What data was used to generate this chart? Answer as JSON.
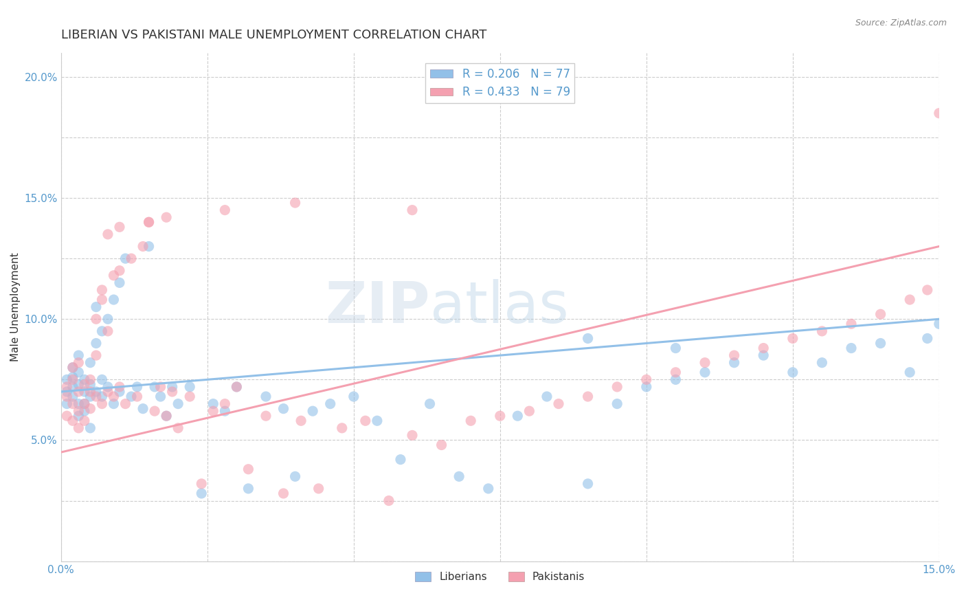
{
  "title": "LIBERIAN VS PAKISTANI MALE UNEMPLOYMENT CORRELATION CHART",
  "source_text": "Source: ZipAtlas.com",
  "ylabel": "Male Unemployment",
  "xlim": [
    0.0,
    0.15
  ],
  "ylim": [
    0.0,
    0.21
  ],
  "xticks": [
    0.0,
    0.025,
    0.05,
    0.075,
    0.1,
    0.125,
    0.15
  ],
  "xticklabels": [
    "0.0%",
    "",
    "",
    "",
    "",
    "",
    "15.0%"
  ],
  "yticks": [
    0.0,
    0.025,
    0.05,
    0.075,
    0.1,
    0.125,
    0.15,
    0.175,
    0.2
  ],
  "yticklabels": [
    "",
    "",
    "5.0%",
    "",
    "10.0%",
    "",
    "15.0%",
    "",
    "20.0%"
  ],
  "liberian_color": "#92c0e8",
  "pakistani_color": "#f4a0b0",
  "liberian_R": 0.206,
  "liberian_N": 77,
  "pakistani_R": 0.433,
  "pakistani_N": 79,
  "watermark_zip": "ZIP",
  "watermark_atlas": "atlas",
  "background_color": "#ffffff",
  "grid_color": "#cccccc",
  "axis_label_color": "#5599cc",
  "title_color": "#333333",
  "liberian_scatter_x": [
    0.001,
    0.001,
    0.001,
    0.002,
    0.002,
    0.002,
    0.002,
    0.003,
    0.003,
    0.003,
    0.003,
    0.003,
    0.004,
    0.004,
    0.004,
    0.004,
    0.005,
    0.005,
    0.005,
    0.005,
    0.006,
    0.006,
    0.006,
    0.007,
    0.007,
    0.007,
    0.008,
    0.008,
    0.009,
    0.009,
    0.01,
    0.01,
    0.011,
    0.012,
    0.013,
    0.014,
    0.015,
    0.016,
    0.017,
    0.018,
    0.019,
    0.02,
    0.022,
    0.024,
    0.026,
    0.028,
    0.03,
    0.032,
    0.035,
    0.038,
    0.04,
    0.043,
    0.046,
    0.05,
    0.054,
    0.058,
    0.063,
    0.068,
    0.073,
    0.078,
    0.083,
    0.09,
    0.095,
    0.1,
    0.105,
    0.11,
    0.115,
    0.12,
    0.125,
    0.13,
    0.135,
    0.14,
    0.145,
    0.148,
    0.15,
    0.105,
    0.09
  ],
  "liberian_scatter_y": [
    0.07,
    0.075,
    0.065,
    0.072,
    0.068,
    0.08,
    0.076,
    0.065,
    0.073,
    0.06,
    0.085,
    0.078,
    0.07,
    0.065,
    0.075,
    0.062,
    0.068,
    0.073,
    0.055,
    0.082,
    0.105,
    0.07,
    0.09,
    0.095,
    0.068,
    0.075,
    0.1,
    0.072,
    0.108,
    0.065,
    0.115,
    0.07,
    0.125,
    0.068,
    0.072,
    0.063,
    0.13,
    0.072,
    0.068,
    0.06,
    0.072,
    0.065,
    0.072,
    0.028,
    0.065,
    0.062,
    0.072,
    0.03,
    0.068,
    0.063,
    0.035,
    0.062,
    0.065,
    0.068,
    0.058,
    0.042,
    0.065,
    0.035,
    0.03,
    0.06,
    0.068,
    0.032,
    0.065,
    0.072,
    0.075,
    0.078,
    0.082,
    0.085,
    0.078,
    0.082,
    0.088,
    0.09,
    0.078,
    0.092,
    0.098,
    0.088,
    0.092
  ],
  "pakistani_scatter_x": [
    0.001,
    0.001,
    0.001,
    0.002,
    0.002,
    0.002,
    0.002,
    0.003,
    0.003,
    0.003,
    0.003,
    0.004,
    0.004,
    0.004,
    0.005,
    0.005,
    0.005,
    0.006,
    0.006,
    0.006,
    0.007,
    0.007,
    0.007,
    0.008,
    0.008,
    0.009,
    0.009,
    0.01,
    0.01,
    0.011,
    0.012,
    0.013,
    0.014,
    0.015,
    0.016,
    0.017,
    0.018,
    0.019,
    0.02,
    0.022,
    0.024,
    0.026,
    0.028,
    0.03,
    0.032,
    0.035,
    0.038,
    0.041,
    0.044,
    0.048,
    0.052,
    0.056,
    0.06,
    0.065,
    0.07,
    0.075,
    0.08,
    0.085,
    0.09,
    0.095,
    0.1,
    0.105,
    0.11,
    0.115,
    0.12,
    0.125,
    0.13,
    0.135,
    0.14,
    0.145,
    0.148,
    0.15,
    0.06,
    0.04,
    0.028,
    0.018,
    0.015,
    0.01,
    0.008
  ],
  "pakistani_scatter_y": [
    0.068,
    0.072,
    0.06,
    0.065,
    0.075,
    0.058,
    0.08,
    0.062,
    0.07,
    0.055,
    0.082,
    0.065,
    0.073,
    0.058,
    0.07,
    0.063,
    0.075,
    0.1,
    0.068,
    0.085,
    0.108,
    0.065,
    0.112,
    0.07,
    0.095,
    0.068,
    0.118,
    0.072,
    0.12,
    0.065,
    0.125,
    0.068,
    0.13,
    0.14,
    0.062,
    0.072,
    0.06,
    0.07,
    0.055,
    0.068,
    0.032,
    0.062,
    0.065,
    0.072,
    0.038,
    0.06,
    0.028,
    0.058,
    0.03,
    0.055,
    0.058,
    0.025,
    0.052,
    0.048,
    0.058,
    0.06,
    0.062,
    0.065,
    0.068,
    0.072,
    0.075,
    0.078,
    0.082,
    0.085,
    0.088,
    0.092,
    0.095,
    0.098,
    0.102,
    0.108,
    0.112,
    0.185,
    0.145,
    0.148,
    0.145,
    0.142,
    0.14,
    0.138,
    0.135
  ]
}
